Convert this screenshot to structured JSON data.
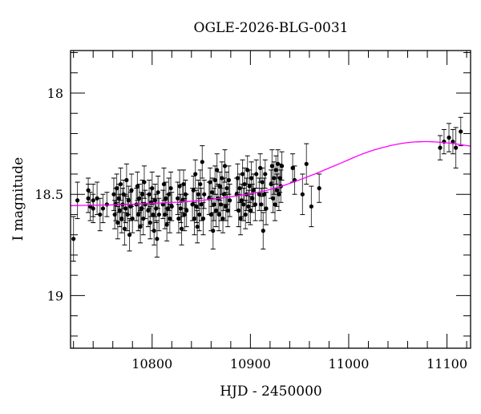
{
  "chart_data": {
    "type": "scatter",
    "title": "OGLE-2026-BLG-0031",
    "xlabel": "HJD - 2450000",
    "ylabel": "I magnitude",
    "xlim": [
      10717,
      11124
    ],
    "ylim": [
      19.26,
      17.79
    ],
    "y_inverted": true,
    "xticks": [
      10800,
      10900,
      11000,
      11100
    ],
    "xminor_step": 20,
    "yticks": [
      18,
      18.5,
      19
    ],
    "ytick_labels": [
      "18",
      "18.5",
      "19"
    ],
    "yminor_step": 0.1,
    "grid": false,
    "colors": {
      "points": "#000000",
      "errorbars": "#000000",
      "fit": "#ff00ff"
    },
    "fit_curve": [
      [
        10717,
        18.556
      ],
      [
        10760,
        18.552
      ],
      [
        10800,
        18.545
      ],
      [
        10850,
        18.53
      ],
      [
        10900,
        18.497
      ],
      [
        10930,
        18.462
      ],
      [
        10960,
        18.41
      ],
      [
        10990,
        18.35
      ],
      [
        11020,
        18.29
      ],
      [
        11050,
        18.252
      ],
      [
        11075,
        18.24
      ],
      [
        11100,
        18.246
      ],
      [
        11124,
        18.262
      ]
    ],
    "points": [
      [
        10720,
        18.72,
        0.11
      ],
      [
        10724,
        18.53,
        0.09
      ],
      [
        10735,
        18.48,
        0.06
      ],
      [
        10735,
        18.52,
        0.07
      ],
      [
        10737,
        18.56,
        0.07
      ],
      [
        10740,
        18.57,
        0.07
      ],
      [
        10740,
        18.53,
        0.08
      ],
      [
        10744,
        18.52,
        0.08
      ],
      [
        10747,
        18.6,
        0.08
      ],
      [
        10750,
        18.57,
        0.07
      ],
      [
        10754,
        18.55,
        0.06
      ],
      [
        10761,
        18.5,
        0.08
      ],
      [
        10762,
        18.6,
        0.07
      ],
      [
        10763,
        18.55,
        0.08
      ],
      [
        10764,
        18.47,
        0.07
      ],
      [
        10765,
        18.64,
        0.08
      ],
      [
        10766,
        18.52,
        0.07
      ],
      [
        10767,
        18.58,
        0.08
      ],
      [
        10768,
        18.45,
        0.08
      ],
      [
        10769,
        18.62,
        0.07
      ],
      [
        10770,
        18.55,
        0.08
      ],
      [
        10771,
        18.5,
        0.07
      ],
      [
        10772,
        18.67,
        0.08
      ],
      [
        10773,
        18.57,
        0.07
      ],
      [
        10774,
        18.43,
        0.08
      ],
      [
        10775,
        18.6,
        0.08
      ],
      [
        10776,
        18.53,
        0.07
      ],
      [
        10777,
        18.7,
        0.08
      ],
      [
        10778,
        18.56,
        0.07
      ],
      [
        10779,
        18.48,
        0.08
      ],
      [
        10780,
        18.62,
        0.07
      ],
      [
        10784,
        18.55,
        0.08
      ],
      [
        10785,
        18.46,
        0.07
      ],
      [
        10786,
        18.6,
        0.08
      ],
      [
        10787,
        18.52,
        0.07
      ],
      [
        10788,
        18.66,
        0.08
      ],
      [
        10789,
        18.57,
        0.08
      ],
      [
        10790,
        18.5,
        0.07
      ],
      [
        10791,
        18.62,
        0.08
      ],
      [
        10792,
        18.44,
        0.08
      ],
      [
        10793,
        18.55,
        0.07
      ],
      [
        10796,
        18.58,
        0.08
      ],
      [
        10797,
        18.5,
        0.07
      ],
      [
        10798,
        18.64,
        0.08
      ],
      [
        10799,
        18.54,
        0.07
      ],
      [
        10800,
        18.47,
        0.08
      ],
      [
        10801,
        18.6,
        0.08
      ],
      [
        10802,
        18.68,
        0.07
      ],
      [
        10803,
        18.53,
        0.08
      ],
      [
        10804,
        18.57,
        0.07
      ],
      [
        10805,
        18.72,
        0.09
      ],
      [
        10806,
        18.49,
        0.08
      ],
      [
        10807,
        18.6,
        0.08
      ],
      [
        10811,
        18.55,
        0.07
      ],
      [
        10812,
        18.45,
        0.08
      ],
      [
        10813,
        18.6,
        0.07
      ],
      [
        10814,
        18.52,
        0.08
      ],
      [
        10815,
        18.65,
        0.08
      ],
      [
        10816,
        18.57,
        0.07
      ],
      [
        10817,
        18.5,
        0.08
      ],
      [
        10818,
        18.62,
        0.07
      ],
      [
        10819,
        18.47,
        0.08
      ],
      [
        10820,
        18.56,
        0.07
      ],
      [
        10826,
        18.52,
        0.08
      ],
      [
        10827,
        18.62,
        0.07
      ],
      [
        10828,
        18.46,
        0.08
      ],
      [
        10829,
        18.57,
        0.07
      ],
      [
        10830,
        18.67,
        0.08
      ],
      [
        10831,
        18.53,
        0.08
      ],
      [
        10832,
        18.45,
        0.07
      ],
      [
        10833,
        18.6,
        0.08
      ],
      [
        10834,
        18.5,
        0.07
      ],
      [
        10835,
        18.58,
        0.08
      ],
      [
        10841,
        18.55,
        0.08
      ],
      [
        10842,
        18.48,
        0.07
      ],
      [
        10843,
        18.62,
        0.08
      ],
      [
        10844,
        18.4,
        0.07
      ],
      [
        10845,
        18.56,
        0.08
      ],
      [
        10846,
        18.66,
        0.08
      ],
      [
        10847,
        18.5,
        0.07
      ],
      [
        10848,
        18.6,
        0.08
      ],
      [
        10849,
        18.45,
        0.07
      ],
      [
        10850,
        18.55,
        0.08
      ],
      [
        10851,
        18.34,
        0.08
      ],
      [
        10852,
        18.62,
        0.08
      ],
      [
        10853,
        18.5,
        0.07
      ],
      [
        10858,
        18.52,
        0.08
      ],
      [
        10859,
        18.44,
        0.07
      ],
      [
        10860,
        18.6,
        0.08
      ],
      [
        10861,
        18.49,
        0.07
      ],
      [
        10862,
        18.68,
        0.09
      ],
      [
        10863,
        18.55,
        0.08
      ],
      [
        10864,
        18.43,
        0.07
      ],
      [
        10865,
        18.58,
        0.08
      ],
      [
        10866,
        18.38,
        0.08
      ],
      [
        10867,
        18.52,
        0.07
      ],
      [
        10868,
        18.6,
        0.08
      ],
      [
        10869,
        18.46,
        0.07
      ],
      [
        10870,
        18.55,
        0.08
      ],
      [
        10871,
        18.42,
        0.08
      ],
      [
        10872,
        18.62,
        0.07
      ],
      [
        10873,
        18.5,
        0.08
      ],
      [
        10874,
        18.36,
        0.08
      ],
      [
        10875,
        18.56,
        0.07
      ],
      [
        10876,
        18.47,
        0.08
      ],
      [
        10877,
        18.58,
        0.08
      ],
      [
        10878,
        18.43,
        0.07
      ],
      [
        10879,
        18.53,
        0.08
      ],
      [
        10886,
        18.5,
        0.08
      ],
      [
        10887,
        18.42,
        0.07
      ],
      [
        10888,
        18.58,
        0.08
      ],
      [
        10889,
        18.47,
        0.07
      ],
      [
        10890,
        18.62,
        0.08
      ],
      [
        10891,
        18.53,
        0.08
      ],
      [
        10892,
        18.4,
        0.07
      ],
      [
        10893,
        18.55,
        0.08
      ],
      [
        10894,
        18.45,
        0.08
      ],
      [
        10895,
        18.6,
        0.07
      ],
      [
        10896,
        18.5,
        0.08
      ],
      [
        10897,
        18.38,
        0.07
      ],
      [
        10898,
        18.56,
        0.08
      ],
      [
        10899,
        18.46,
        0.08
      ],
      [
        10900,
        18.58,
        0.07
      ],
      [
        10901,
        18.42,
        0.08
      ],
      [
        10902,
        18.52,
        0.07
      ],
      [
        10903,
        18.48,
        0.08
      ],
      [
        10905,
        18.55,
        0.08
      ],
      [
        10906,
        18.4,
        0.07
      ],
      [
        10909,
        18.5,
        0.08
      ],
      [
        10910,
        18.37,
        0.07
      ],
      [
        10911,
        18.55,
        0.08
      ],
      [
        10912,
        18.44,
        0.07
      ],
      [
        10913,
        18.68,
        0.09
      ],
      [
        10914,
        18.5,
        0.08
      ],
      [
        10915,
        18.4,
        0.07
      ],
      [
        10916,
        18.57,
        0.08
      ],
      [
        10921,
        18.45,
        0.07
      ],
      [
        10922,
        18.36,
        0.08
      ],
      [
        10923,
        18.52,
        0.07
      ],
      [
        10924,
        18.42,
        0.08
      ],
      [
        10925,
        18.55,
        0.08
      ],
      [
        10926,
        18.38,
        0.07
      ],
      [
        10927,
        18.48,
        0.08
      ],
      [
        10928,
        18.35,
        0.07
      ],
      [
        10929,
        18.5,
        0.08
      ],
      [
        10930,
        18.42,
        0.07
      ],
      [
        10931,
        18.46,
        0.08
      ],
      [
        10932,
        18.36,
        0.07
      ],
      [
        10943,
        18.37,
        0.07
      ],
      [
        10945,
        18.43,
        0.07
      ],
      [
        10953,
        18.5,
        0.1
      ],
      [
        10957,
        18.35,
        0.1
      ],
      [
        10962,
        18.56,
        0.1
      ],
      [
        10970,
        18.47,
        0.07
      ],
      [
        11093,
        18.27,
        0.06
      ],
      [
        11097,
        18.24,
        0.06
      ],
      [
        11102,
        18.22,
        0.07
      ],
      [
        11106,
        18.24,
        0.06
      ],
      [
        11109,
        18.27,
        0.1
      ],
      [
        11114,
        18.19,
        0.07
      ]
    ]
  }
}
